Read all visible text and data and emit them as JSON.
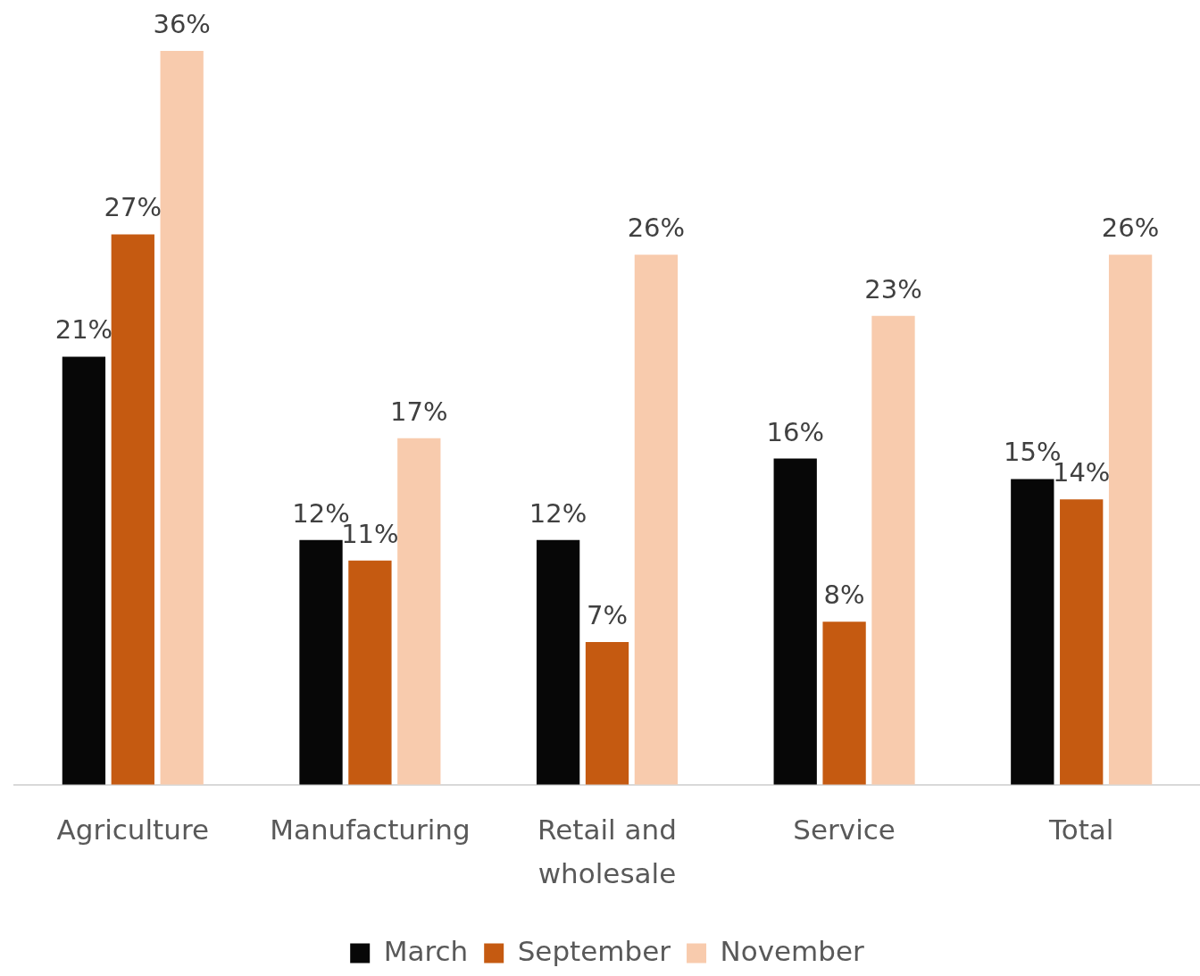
{
  "chart_data": {
    "type": "bar",
    "categories": [
      "Agriculture",
      "Manufacturing",
      "Retail and wholesale",
      "Service",
      "Total"
    ],
    "series": [
      {
        "name": "March",
        "color": "#070707",
        "values": [
          21,
          12,
          12,
          16,
          15
        ],
        "value_labels": [
          "21%",
          "12%",
          "12%",
          "16%",
          "15%"
        ]
      },
      {
        "name": "September",
        "color": "#c55a11",
        "values": [
          27,
          11,
          7,
          8,
          14
        ],
        "value_labels": [
          "27%",
          "11%",
          "7%",
          "8%",
          "14%"
        ]
      },
      {
        "name": "November",
        "color": "#f8cbad",
        "values": [
          36,
          17,
          26,
          23,
          26
        ],
        "value_labels": [
          "36%",
          "17%",
          "26%",
          "23%",
          "26%"
        ]
      }
    ],
    "legend": "bottom",
    "tick_labels": "x"
  }
}
